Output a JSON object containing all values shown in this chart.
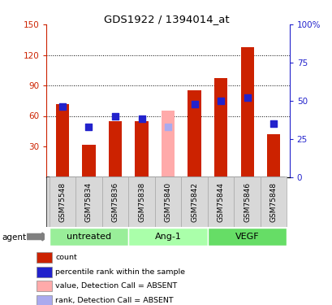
{
  "title": "GDS1922 / 1394014_at",
  "samples": [
    "GSM75548",
    "GSM75834",
    "GSM75836",
    "GSM75838",
    "GSM75840",
    "GSM75842",
    "GSM75844",
    "GSM75846",
    "GSM75848"
  ],
  "bar_values": [
    72,
    32,
    55,
    55,
    null,
    85,
    97,
    128,
    42
  ],
  "bar_absent_values": [
    null,
    null,
    null,
    null,
    65,
    null,
    null,
    null,
    null
  ],
  "rank_values": [
    46,
    33,
    40,
    38,
    null,
    48,
    50,
    52,
    35
  ],
  "rank_absent_values": [
    null,
    null,
    null,
    null,
    33,
    null,
    null,
    null,
    null
  ],
  "bar_color": "#cc2200",
  "bar_absent_color": "#ffaaaa",
  "rank_color": "#2222cc",
  "rank_absent_color": "#aaaaee",
  "ylim_left": [
    0,
    150
  ],
  "ylim_right": [
    0,
    100
  ],
  "yticks_left": [
    30,
    60,
    90,
    120,
    150
  ],
  "ytick_labels_left": [
    "30",
    "60",
    "90",
    "120",
    "150"
  ],
  "yticks_right": [
    0,
    25,
    50,
    75,
    100
  ],
  "ytick_labels_right": [
    "0",
    "25",
    "50",
    "75",
    "100%"
  ],
  "groups": [
    {
      "label": "untreated",
      "indices": [
        0,
        1,
        2
      ],
      "color": "#99ee99"
    },
    {
      "label": "Ang-1",
      "indices": [
        3,
        4,
        5
      ],
      "color": "#aaffaa"
    },
    {
      "label": "VEGF",
      "indices": [
        6,
        7,
        8
      ],
      "color": "#66dd66"
    }
  ],
  "agent_label": "agent",
  "legend_items": [
    {
      "label": "count",
      "color": "#cc2200"
    },
    {
      "label": "percentile rank within the sample",
      "color": "#2222cc"
    },
    {
      "label": "value, Detection Call = ABSENT",
      "color": "#ffaaaa"
    },
    {
      "label": "rank, Detection Call = ABSENT",
      "color": "#aaaaee"
    }
  ],
  "bar_width": 0.5,
  "rank_marker_size": 28
}
